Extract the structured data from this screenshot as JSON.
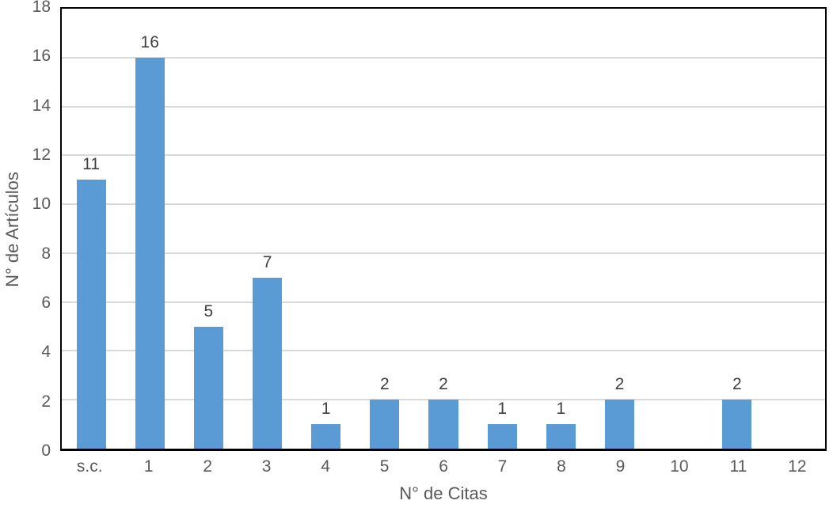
{
  "chart_data": {
    "type": "bar",
    "categories": [
      "s.c.",
      "1",
      "2",
      "3",
      "4",
      "5",
      "6",
      "7",
      "8",
      "9",
      "10",
      "11",
      "12"
    ],
    "values": [
      11,
      16,
      5,
      7,
      1,
      2,
      2,
      1,
      1,
      2,
      0,
      2,
      0
    ],
    "data_labels": [
      "11",
      "16",
      "5",
      "7",
      "1",
      "2",
      "2",
      "1",
      "1",
      "2",
      "",
      "2",
      ""
    ],
    "title": "",
    "xlabel": "N° de Citas",
    "ylabel": "N° de Artículos",
    "ylim": [
      0,
      18
    ],
    "ytick_step": 2,
    "yticks": [
      "0",
      "2",
      "4",
      "6",
      "8",
      "10",
      "12",
      "14",
      "16",
      "18"
    ],
    "grid": true,
    "legend": "none",
    "show_data_labels": true,
    "colors": {
      "bar": "#5b9bd5",
      "gridline": "#d9d9d9",
      "plot_border": "#000000",
      "axis_text": "#595959",
      "data_label_text": "#404040",
      "background": "#ffffff"
    }
  }
}
